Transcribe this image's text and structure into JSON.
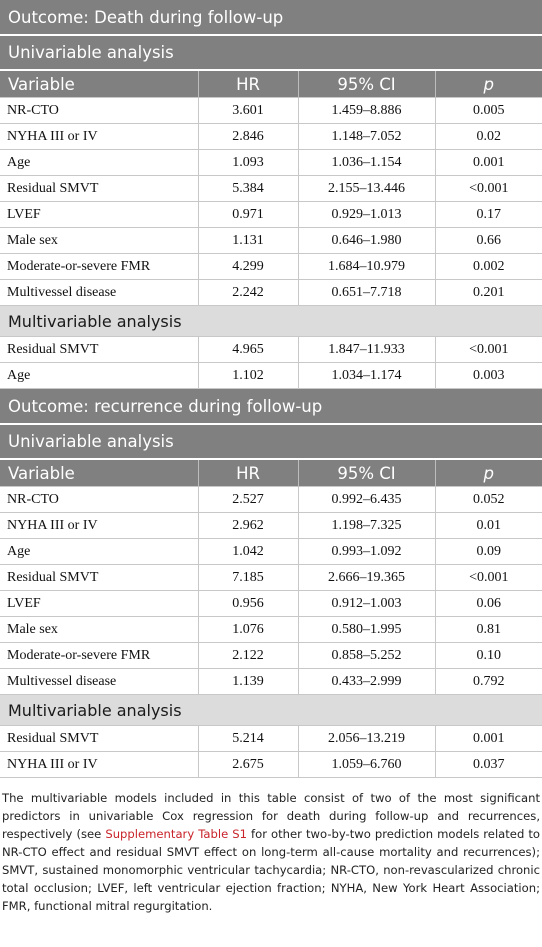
{
  "sections": [
    {
      "outcome": "Outcome: Death during follow-up",
      "univariable_title": "Univariable analysis",
      "headers": {
        "variable": "Variable",
        "hr": "HR",
        "ci": "95% CI",
        "p": "p"
      },
      "univariable_rows": [
        [
          "NR-CTO",
          "3.601",
          "1.459–8.886",
          "0.005"
        ],
        [
          "NYHA III or IV",
          "2.846",
          "1.148–7.052",
          "0.02"
        ],
        [
          "Age",
          "1.093",
          "1.036–1.154",
          "0.001"
        ],
        [
          "Residual SMVT",
          "5.384",
          "2.155–13.446",
          "<0.001"
        ],
        [
          "LVEF",
          "0.971",
          "0.929–1.013",
          "0.17"
        ],
        [
          "Male sex",
          "1.131",
          "0.646–1.980",
          "0.66"
        ],
        [
          "Moderate-or-severe FMR",
          "4.299",
          "1.684–10.979",
          "0.002"
        ],
        [
          "Multivessel disease",
          "2.242",
          "0.651–7.718",
          "0.201"
        ]
      ],
      "multivariable_title": "Multivariable analysis",
      "multivariable_rows": [
        [
          "Residual SMVT",
          "4.965",
          "1.847–11.933",
          "<0.001"
        ],
        [
          "Age",
          "1.102",
          "1.034–1.174",
          "0.003"
        ]
      ]
    },
    {
      "outcome": "Outcome: recurrence during follow-up",
      "univariable_title": "Univariable analysis",
      "headers": {
        "variable": "Variable",
        "hr": "HR",
        "ci": "95% CI",
        "p": "p"
      },
      "univariable_rows": [
        [
          "NR-CTO",
          "2.527",
          "0.992–6.435",
          "0.052"
        ],
        [
          "NYHA III or IV",
          "2.962",
          "1.198–7.325",
          "0.01"
        ],
        [
          "Age",
          "1.042",
          "0.993–1.092",
          "0.09"
        ],
        [
          "Residual SMVT",
          "7.185",
          "2.666–19.365",
          "<0.001"
        ],
        [
          "LVEF",
          "0.956",
          "0.912–1.003",
          "0.06"
        ],
        [
          "Male sex",
          "1.076",
          "0.580–1.995",
          "0.81"
        ],
        [
          "Moderate-or-severe FMR",
          "2.122",
          "0.858–5.252",
          "0.10"
        ],
        [
          "Multivessel disease",
          "1.139",
          "0.433–2.999",
          "0.792"
        ]
      ],
      "multivariable_title": "Multivariable analysis",
      "multivariable_rows": [
        [
          "Residual SMVT",
          "5.214",
          "2.056–13.219",
          "0.001"
        ],
        [
          "NYHA III or IV",
          "2.675",
          "1.059–6.760",
          "0.037"
        ]
      ]
    }
  ],
  "footnote": {
    "before_link": "The multivariable models included in this table consist of two of the most significant predictors in univariable Cox regression for death during follow-up and recurrences, respectively (see ",
    "link_text": "Supplementary Table S1",
    "after_link": " for other two-by-two prediction models related to NR-CTO effect and residual SMVT effect on long-term all-cause mortality and recurrences); SMVT, sustained monomorphic ventricular tachycardia; NR-CTO, non-revascularized chronic total occlusion; LVEF, left ventricular ejection fraction; NYHA, New York Heart Association; FMR, functional mitral regurgitation."
  },
  "colors": {
    "header_bg": "#808080",
    "subheader_bg": "#dcdcdc",
    "link": "#c8242a"
  }
}
